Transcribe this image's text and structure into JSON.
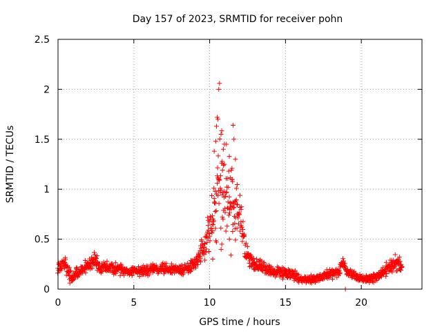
{
  "chart_data": {
    "type": "scatter",
    "title": "Day 157 of 2023, SRMTID for receiver pohn",
    "xlabel": "GPS time / hours",
    "ylabel": "SRMTID / TECUs",
    "xlim": [
      0,
      24
    ],
    "ylim": [
      0,
      2.5
    ],
    "xticks": [
      0,
      5,
      10,
      15,
      20
    ],
    "xtick_labels": [
      "0",
      "5",
      "10",
      "15",
      "20"
    ],
    "yticks": [
      0,
      0.5,
      1,
      1.5,
      2,
      2.5
    ],
    "ytick_labels": [
      "0",
      "0.5",
      "1",
      "1.5",
      "2",
      "2.5"
    ],
    "grid": true,
    "marker": "+",
    "point_spacing_hours": 0.0333,
    "series": [
      {
        "name": "pohn",
        "color": "#ff0000",
        "trend": {
          "x": [
            0.0,
            0.3,
            0.6,
            0.9,
            1.2,
            1.6,
            2.0,
            2.4,
            2.8,
            3.5,
            4.5,
            5.5,
            6.5,
            7.2,
            7.8,
            8.5,
            9.0,
            9.3,
            9.6,
            9.9,
            10.2,
            10.5,
            10.8,
            11.1,
            11.4,
            11.7,
            12.0,
            12.3,
            12.6,
            13.0,
            14.0,
            15.0,
            15.5,
            16.0,
            16.5,
            17.0,
            17.5,
            18.0,
            18.5,
            18.8,
            19.0,
            19.5,
            20.0,
            20.5,
            21.0,
            21.5,
            22.0,
            22.3,
            22.7
          ],
          "y": [
            0.22,
            0.26,
            0.2,
            0.1,
            0.16,
            0.2,
            0.24,
            0.3,
            0.22,
            0.22,
            0.18,
            0.18,
            0.2,
            0.2,
            0.2,
            0.2,
            0.25,
            0.3,
            0.42,
            0.55,
            0.72,
            0.95,
            1.05,
            0.95,
            1.0,
            0.8,
            0.8,
            0.45,
            0.3,
            0.25,
            0.18,
            0.16,
            0.14,
            0.1,
            0.1,
            0.1,
            0.13,
            0.15,
            0.16,
            0.28,
            0.18,
            0.14,
            0.1,
            0.1,
            0.12,
            0.18,
            0.24,
            0.26,
            0.22
          ],
          "spread": [
            0.06,
            0.07,
            0.07,
            0.05,
            0.05,
            0.06,
            0.06,
            0.08,
            0.06,
            0.06,
            0.05,
            0.05,
            0.05,
            0.05,
            0.05,
            0.05,
            0.07,
            0.09,
            0.14,
            0.2,
            0.3,
            0.45,
            0.5,
            0.45,
            0.35,
            0.3,
            0.25,
            0.12,
            0.07,
            0.06,
            0.05,
            0.05,
            0.05,
            0.04,
            0.04,
            0.04,
            0.04,
            0.05,
            0.05,
            0.06,
            0.05,
            0.04,
            0.04,
            0.04,
            0.04,
            0.05,
            0.07,
            0.08,
            0.06
          ]
        },
        "notable_points": [
          {
            "x": 10.65,
            "y": 2.06
          },
          {
            "x": 10.6,
            "y": 2.0
          },
          {
            "x": 10.5,
            "y": 1.72
          },
          {
            "x": 10.55,
            "y": 1.7
          },
          {
            "x": 11.55,
            "y": 1.64
          },
          {
            "x": 10.45,
            "y": 1.63
          },
          {
            "x": 10.75,
            "y": 1.55
          },
          {
            "x": 11.6,
            "y": 1.5
          },
          {
            "x": 10.4,
            "y": 1.48
          },
          {
            "x": 11.1,
            "y": 1.45
          },
          {
            "x": 10.3,
            "y": 1.38
          },
          {
            "x": 10.9,
            "y": 1.4
          },
          {
            "x": 11.7,
            "y": 1.3
          },
          {
            "x": 11.3,
            "y": 0.5
          },
          {
            "x": 10.8,
            "y": 0.45
          },
          {
            "x": 11.4,
            "y": 0.34
          },
          {
            "x": 10.2,
            "y": 0.3
          },
          {
            "x": 18.95,
            "y": 0.0
          }
        ]
      }
    ]
  }
}
